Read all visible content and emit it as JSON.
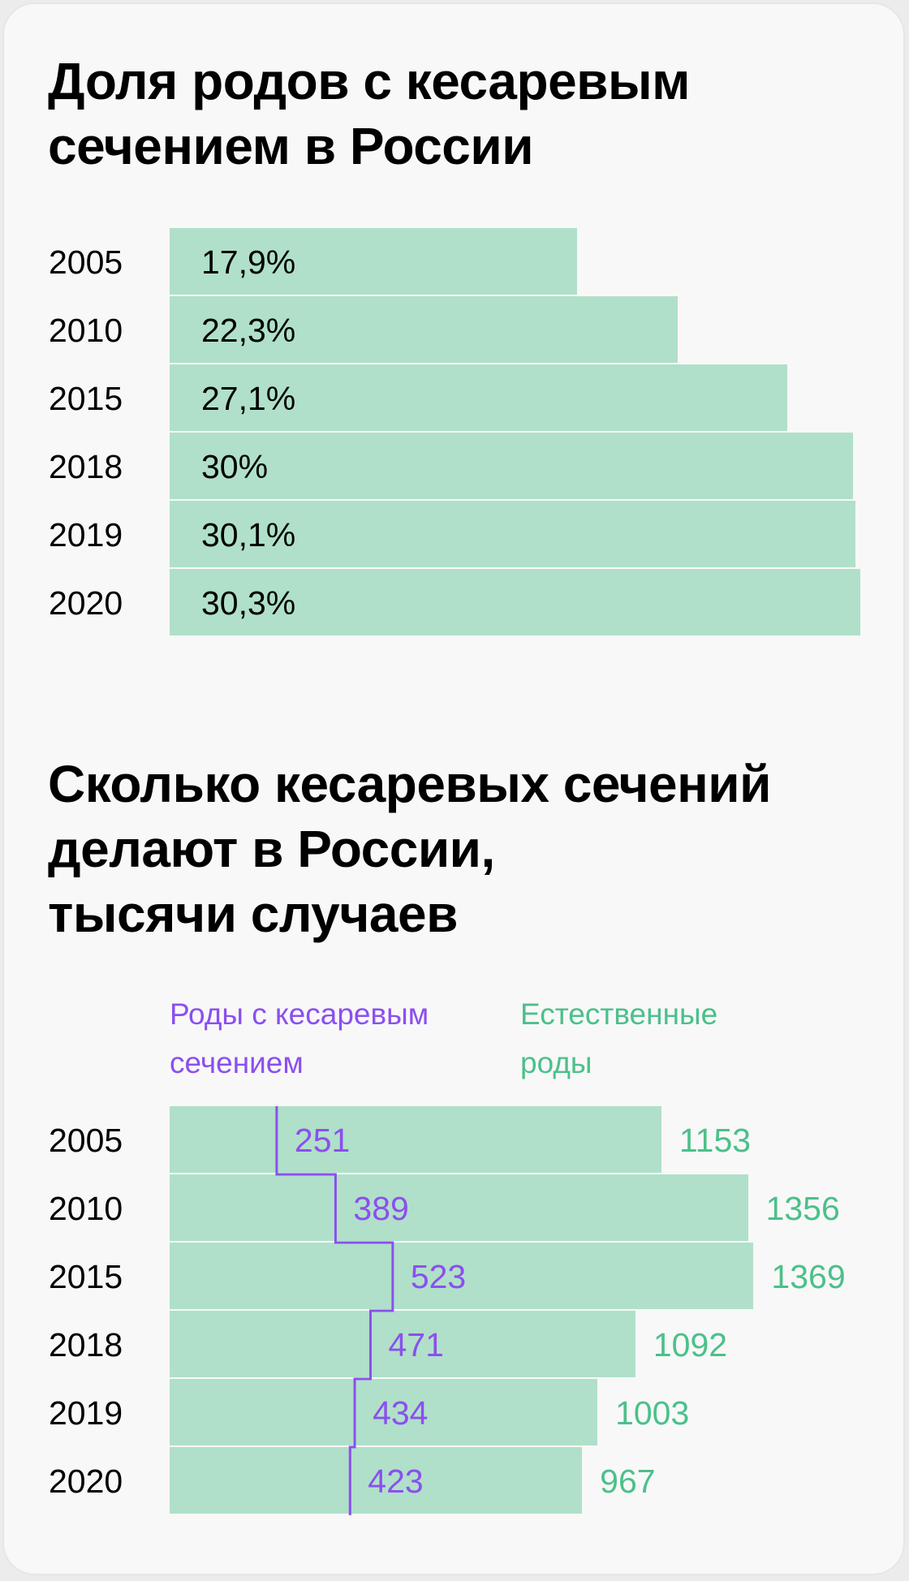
{
  "colors": {
    "bar": "#b0e0c9",
    "caesarean": "#8b4ff0",
    "natural": "#4cc08a",
    "text": "#000000",
    "background": "#f8f8f8"
  },
  "chart_data": [
    {
      "type": "bar",
      "orientation": "horizontal",
      "title": "Доля родов с кесаревым\nсечением в России",
      "categories": [
        "2005",
        "2010",
        "2015",
        "2018",
        "2019",
        "2020"
      ],
      "values": [
        17.9,
        22.3,
        27.1,
        30,
        30.1,
        30.3
      ],
      "value_labels": [
        "17,9%",
        "22,3%",
        "27,1%",
        "30%",
        "30,1%",
        "30,3%"
      ],
      "unit": "%"
    },
    {
      "type": "bar",
      "orientation": "horizontal",
      "title": "Сколько кесаревых сечений\nделают в России,\nтысячи случаев",
      "categories": [
        "2005",
        "2010",
        "2015",
        "2018",
        "2019",
        "2020"
      ],
      "series": [
        {
          "name": "Роды с кесаревым\nсечением",
          "values": [
            251,
            389,
            523,
            471,
            434,
            423
          ],
          "style": "step-line",
          "color": "#8b4ff0"
        },
        {
          "name": "Естественные\nроды",
          "values": [
            1153,
            1356,
            1369,
            1092,
            1003,
            967
          ],
          "style": "bar",
          "color": "#4cc08a"
        }
      ]
    }
  ]
}
